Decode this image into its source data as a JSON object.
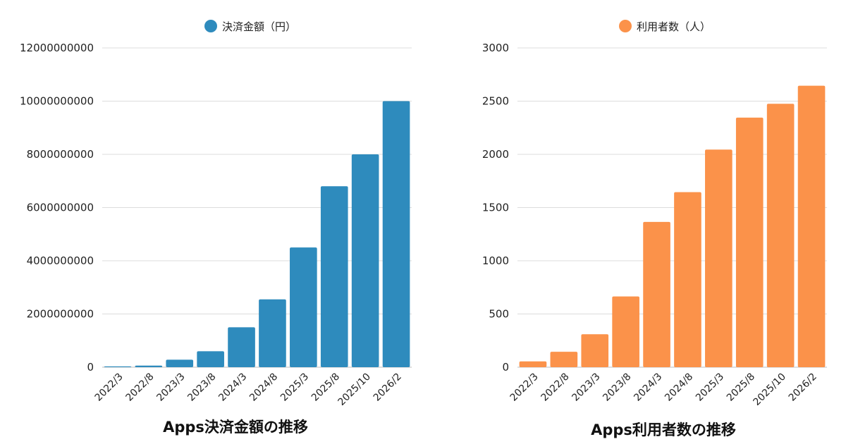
{
  "chart_data": [
    {
      "type": "bar",
      "title": "Apps決済金額の推移",
      "categories": [
        "2022/3",
        "2022/8",
        "2023/3",
        "2023/8",
        "2024/3",
        "2024/8",
        "2025/3",
        "2025/8",
        "2025/10",
        "2026/2"
      ],
      "series": [
        {
          "name": "決済金額（円）",
          "color": "#2e8bbd",
          "values": [
            30000000,
            60000000,
            280000000,
            600000000,
            1500000000,
            2550000000,
            4500000000,
            6800000000,
            8000000000,
            10000000000
          ]
        }
      ],
      "ylim": [
        0,
        12000000000
      ],
      "yticks": [
        "0",
        "2000000000",
        "4000000000",
        "6000000000",
        "8000000000",
        "10000000000",
        "12000000000"
      ],
      "legend_position": "top-center",
      "grid": true
    },
    {
      "type": "bar",
      "title": "Apps利用者数の推移",
      "categories": [
        "2022/3",
        "2022/8",
        "2023/3",
        "2023/8",
        "2024/3",
        "2024/8",
        "2025/3",
        "2025/8",
        "2025/10",
        "2026/2"
      ],
      "series": [
        {
          "name": "利用者数（人）",
          "color": "#fb924a",
          "values": [
            55,
            145,
            310,
            665,
            1365,
            1645,
            2045,
            2345,
            2475,
            2645
          ]
        }
      ],
      "ylim": [
        0,
        3000
      ],
      "yticks": [
        "0",
        "500",
        "1000",
        "1500",
        "2000",
        "2500",
        "3000"
      ],
      "legend_position": "top-center",
      "grid": true
    }
  ]
}
